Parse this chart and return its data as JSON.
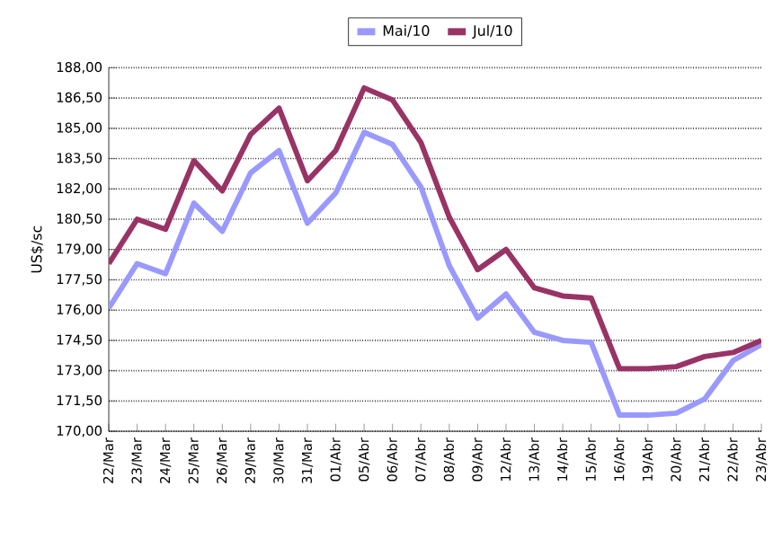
{
  "chart_data": {
    "type": "line",
    "ylabel": "US$/sc",
    "categories": [
      "22/Mar",
      "23/Mar",
      "24/Mar",
      "25/Mar",
      "26/Mar",
      "29/Mar",
      "30/Mar",
      "31/Mar",
      "01/Abr",
      "05/Abr",
      "06/Abr",
      "07/Abr",
      "08/Abr",
      "09/Abr",
      "12/Abr",
      "13/Abr",
      "14/Abr",
      "15/Abr",
      "16/Abr",
      "19/Abr",
      "20/Abr",
      "21/Abr",
      "22/Abr",
      "23/Abr"
    ],
    "series": [
      {
        "name": "Mai/10",
        "color": "#9999ff",
        "values": [
          176.1,
          178.3,
          177.8,
          181.3,
          179.9,
          182.8,
          183.9,
          180.3,
          181.8,
          184.8,
          184.2,
          182.1,
          178.2,
          175.6,
          176.8,
          174.9,
          174.5,
          174.4,
          170.8,
          170.8,
          170.9,
          171.6,
          173.5,
          174.3
        ]
      },
      {
        "name": "Jul/10",
        "color": "#993366",
        "values": [
          178.3,
          180.5,
          180.0,
          183.4,
          181.9,
          184.7,
          186.0,
          182.4,
          183.9,
          187.0,
          186.4,
          184.3,
          180.6,
          178.0,
          179.0,
          177.1,
          176.7,
          176.6,
          173.1,
          173.1,
          173.2,
          173.7,
          173.9,
          174.5
        ]
      }
    ],
    "ylim": [
      170,
      188
    ],
    "yticks": [
      {
        "value": 170,
        "label": "170,00"
      },
      {
        "value": 171.5,
        "label": "171,50"
      },
      {
        "value": 173,
        "label": "173,00"
      },
      {
        "value": 174.5,
        "label": "174,50"
      },
      {
        "value": 176,
        "label": "176,00"
      },
      {
        "value": 177.5,
        "label": "177,50"
      },
      {
        "value": 179,
        "label": "179,00"
      },
      {
        "value": 180.5,
        "label": "180,50"
      },
      {
        "value": 182,
        "label": "182,00"
      },
      {
        "value": 183.5,
        "label": "183,50"
      },
      {
        "value": 185,
        "label": "185,00"
      },
      {
        "value": 186.5,
        "label": "186,50"
      },
      {
        "value": 188,
        "label": "188,00"
      }
    ],
    "grid": "y",
    "legend": "top",
    "marker": "none",
    "line_style": "solid"
  }
}
